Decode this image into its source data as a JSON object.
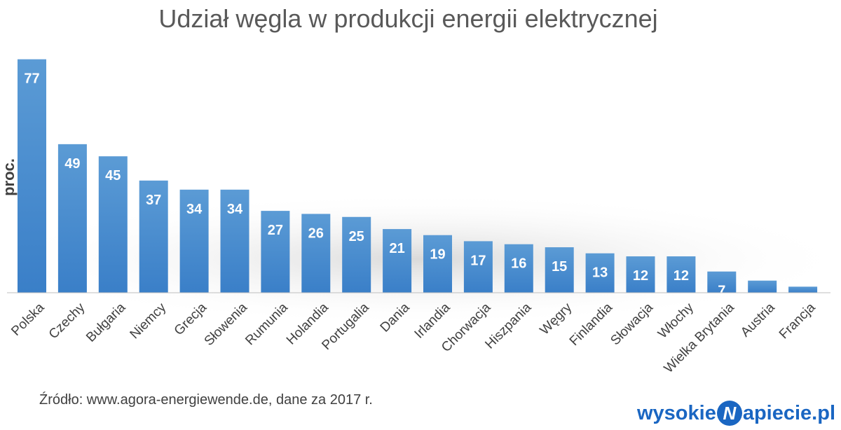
{
  "chart_data": {
    "type": "bar",
    "title": "Udział węgla w produkcji energii elektrycznej",
    "ylabel": "proc.",
    "xlabel": "",
    "ylim": [
      0,
      85
    ],
    "grid": false,
    "categories": [
      "Polska",
      "Czechy",
      "Bułgaria",
      "Niemcy",
      "Grecja",
      "Słowenia",
      "Rumunia",
      "Holandia",
      "Portugalia",
      "Dania",
      "Irlandia",
      "Chorwacja",
      "Hiszpania",
      "Węgry",
      "Finlandia",
      "Słowacja",
      "Włochy",
      "Wielka Brytania",
      "Austria",
      "Francja"
    ],
    "values": [
      77,
      49,
      45,
      37,
      34,
      34,
      27,
      26,
      25,
      21,
      19,
      17,
      16,
      15,
      13,
      12,
      12,
      7,
      4,
      2
    ],
    "colors": {
      "bar_top": "#5b9bd5",
      "bar_bottom": "#3a7fc8",
      "label": "#ffffff",
      "title": "#595959",
      "axis": "#bfbfbf"
    }
  },
  "source": "Źródło: www.agora-energiewende.de, dane za 2017 r.",
  "brand": {
    "before": "wysokie",
    "mark": "N",
    "after": "apiecie.pl"
  }
}
